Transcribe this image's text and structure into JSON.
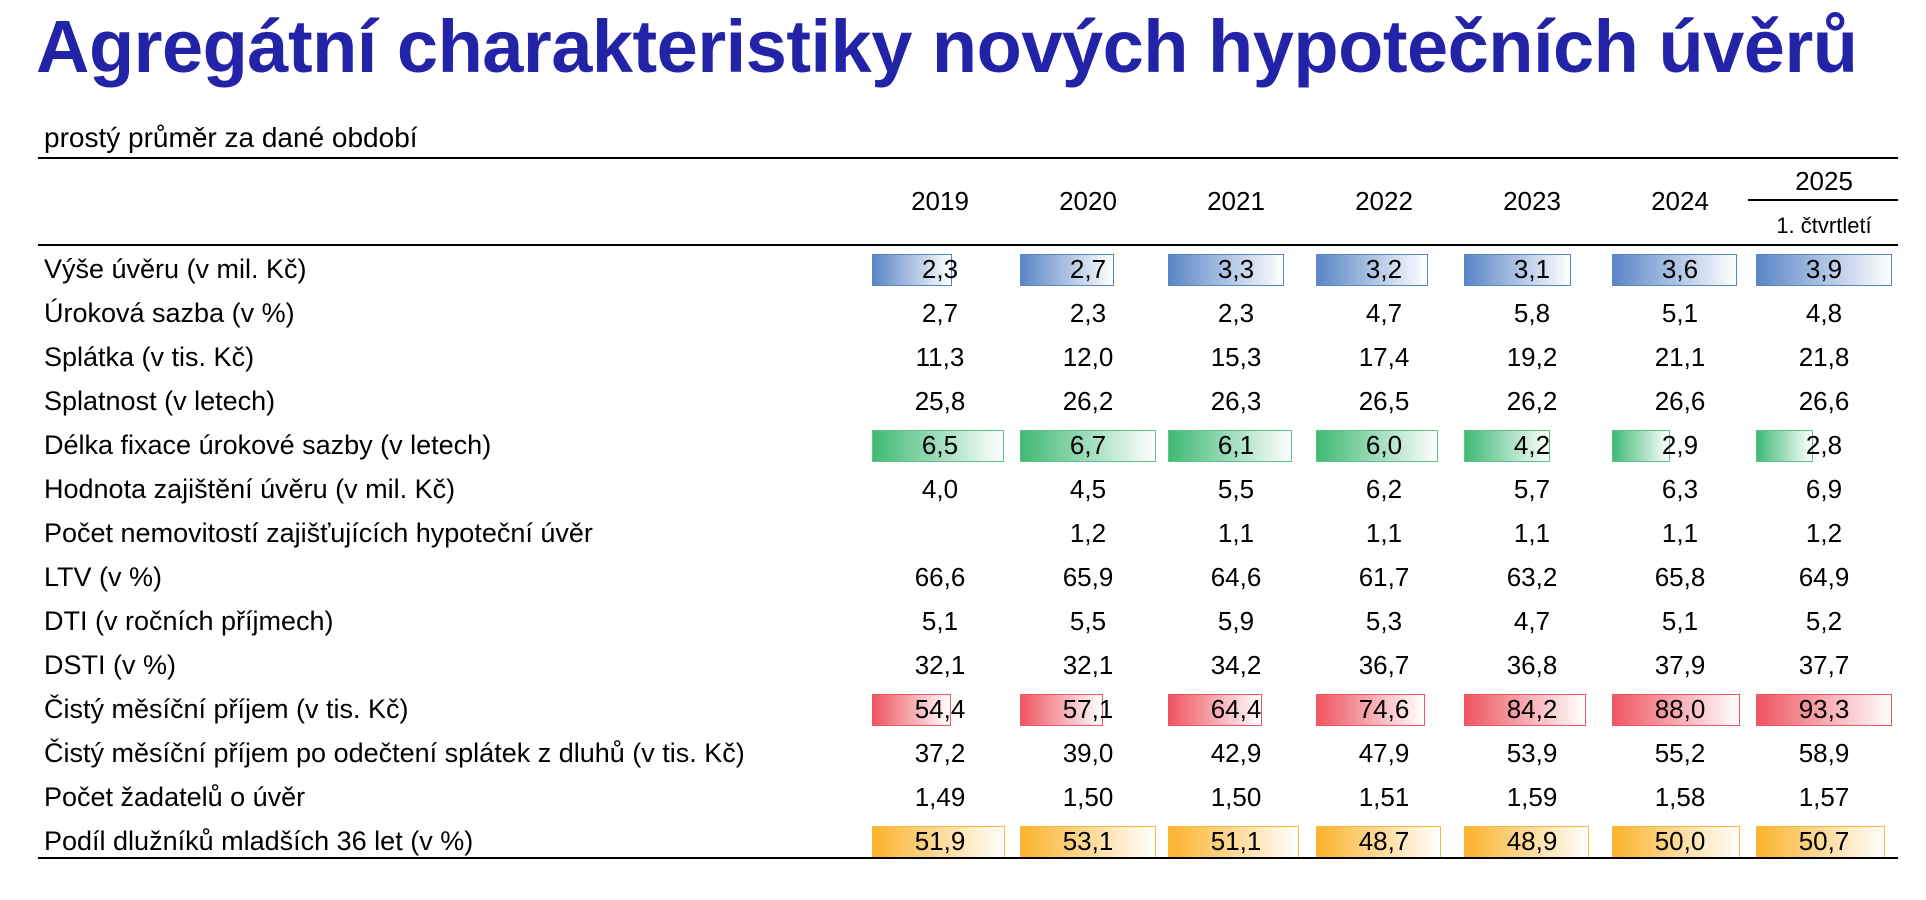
{
  "title": "Agregátní charakteristiky nových hypotečních úvěrů",
  "subtitle": "prostý průměr za dané období",
  "columns": [
    "2019",
    "2020",
    "2021",
    "2022",
    "2023",
    "2024",
    "2025"
  ],
  "last_column_sublabel": "1. čtvrtletí",
  "bar_colors": {
    "blue": {
      "dark": "#5a86c6",
      "light": "#ffffff",
      "border": "#5a86c6"
    },
    "green": {
      "dark": "#3fba74",
      "light": "#ffffff",
      "border": "#5cc48a"
    },
    "red": {
      "dark": "#ef5560",
      "light": "#ffffff",
      "border": "#ef5560"
    },
    "orange": {
      "dark": "#fbb32c",
      "light": "#ffffff",
      "border": "#f9b642"
    }
  },
  "rows": [
    {
      "label": "Výše úvěru (v mil. Kč)",
      "values": [
        "2,3",
        "2,7",
        "3,3",
        "3,2",
        "3,1",
        "3,6",
        "3,9"
      ],
      "bar": "blue",
      "levels": [
        0.59,
        0.69,
        0.85,
        0.82,
        0.79,
        0.92,
        1.0
      ]
    },
    {
      "label": "Úroková sazba (v %)",
      "values": [
        "2,7",
        "2,3",
        "2,3",
        "4,7",
        "5,8",
        "5,1",
        "4,8"
      ]
    },
    {
      "label": "Splátka (v tis. Kč)",
      "values": [
        "11,3",
        "12,0",
        "15,3",
        "17,4",
        "19,2",
        "21,1",
        "21,8"
      ]
    },
    {
      "label": "Splatnost (v letech)",
      "values": [
        "25,8",
        "26,2",
        "26,3",
        "26,5",
        "26,2",
        "26,6",
        "26,6"
      ]
    },
    {
      "label": "Délka fixace úrokové sazby (v letech)",
      "values": [
        "6,5",
        "6,7",
        "6,1",
        "6,0",
        "4,2",
        "2,9",
        "2,8"
      ],
      "bar": "green",
      "levels": [
        0.97,
        1.0,
        0.91,
        0.9,
        0.63,
        0.43,
        0.42
      ]
    },
    {
      "label": "Hodnota zajištění úvěru (v mil. Kč)",
      "values": [
        "4,0",
        "4,5",
        "5,5",
        "6,2",
        "5,7",
        "6,3",
        "6,9"
      ]
    },
    {
      "label": "Počet nemovitostí zajišťujících hypoteční úvěr",
      "values": [
        "",
        "1,2",
        "1,1",
        "1,1",
        "1,1",
        "1,1",
        "1,2"
      ]
    },
    {
      "label": "LTV (v %)",
      "values": [
        "66,6",
        "65,9",
        "64,6",
        "61,7",
        "63,2",
        "65,8",
        "64,9"
      ]
    },
    {
      "label": "DTI (v ročních příjmech)",
      "values": [
        "5,1",
        "5,5",
        "5,9",
        "5,3",
        "4,7",
        "5,1",
        "5,2"
      ]
    },
    {
      "label": "DSTI (v %)",
      "values": [
        "32,1",
        "32,1",
        "34,2",
        "36,7",
        "36,8",
        "37,9",
        "37,7"
      ]
    },
    {
      "label": "Čistý měsíční příjem (v tis. Kč)",
      "values": [
        "54,4",
        "57,1",
        "64,4",
        "74,6",
        "84,2",
        "88,0",
        "93,3"
      ],
      "bar": "red",
      "levels": [
        0.58,
        0.61,
        0.69,
        0.8,
        0.9,
        0.94,
        1.0
      ]
    },
    {
      "label": "Čistý měsíční příjem po odečtení splátek z dluhů (v tis. Kč)",
      "values": [
        "37,2",
        "39,0",
        "42,9",
        "47,9",
        "53,9",
        "55,2",
        "58,9"
      ]
    },
    {
      "label": "Počet žadatelů o úvěr",
      "values": [
        "1,49",
        "1,50",
        "1,50",
        "1,51",
        "1,59",
        "1,58",
        "1,57"
      ]
    },
    {
      "label": "Podíl dlužníků mladších 36 let (v %)",
      "values": [
        "51,9",
        "53,1",
        "51,1",
        "48,7",
        "48,9",
        "50,0",
        "50,7"
      ],
      "bar": "orange",
      "levels": [
        0.98,
        1.0,
        0.96,
        0.92,
        0.92,
        0.94,
        0.95
      ]
    }
  ]
}
